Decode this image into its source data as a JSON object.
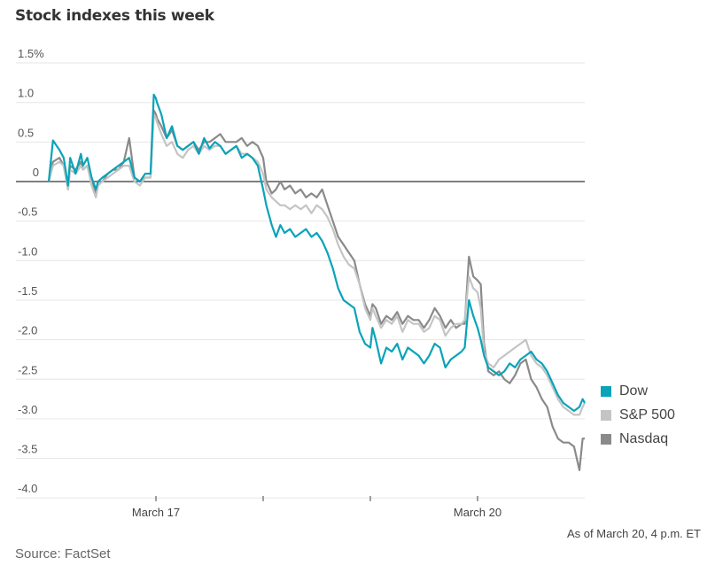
{
  "chart_data": {
    "type": "line",
    "title": "Stock indexes this week",
    "xlabel": "",
    "ylabel": "",
    "ylim": [
      -4.0,
      1.5
    ],
    "yticks": [
      1.5,
      1.0,
      0.5,
      0,
      -0.5,
      -1.0,
      -1.5,
      -2.0,
      -2.5,
      -3.0,
      -3.5,
      -4.0
    ],
    "ytick_labels": [
      "1.5%",
      "1.0",
      "0.5",
      "0",
      "-0.5",
      "-1.0",
      "-1.5",
      "-2.0",
      "-2.5",
      "-3.0",
      "-3.5",
      "-4.0"
    ],
    "xlim": [
      0,
      5
    ],
    "xticks": [
      1,
      2,
      3,
      4
    ],
    "xtick_labels": [
      "March 17",
      "",
      "",
      "March 20"
    ],
    "grid": true,
    "legend_position": "right",
    "annotation": "As of March 20, 4 p.m. ET",
    "source": "Source: FactSet",
    "series": [
      {
        "name": "Dow",
        "color": "#0aa3b9",
        "x": [
          0,
          0.04,
          0.1,
          0.14,
          0.18,
          0.2,
          0.25,
          0.3,
          0.32,
          0.36,
          0.4,
          0.44,
          0.46,
          0.5,
          0.55,
          0.6,
          0.65,
          0.7,
          0.75,
          0.8,
          0.85,
          0.9,
          0.95,
          0.98,
          1.0,
          1.01,
          1.05,
          1.1,
          1.15,
          1.2,
          1.25,
          1.3,
          1.35,
          1.4,
          1.45,
          1.5,
          1.55,
          1.6,
          1.65,
          1.7,
          1.75,
          1.8,
          1.85,
          1.9,
          1.95,
          2.0,
          2.03,
          2.08,
          2.12,
          2.16,
          2.2,
          2.25,
          2.3,
          2.35,
          2.4,
          2.45,
          2.5,
          2.55,
          2.6,
          2.65,
          2.7,
          2.75,
          2.8,
          2.85,
          2.9,
          2.95,
          3.0,
          3.02,
          3.05,
          3.1,
          3.15,
          3.2,
          3.25,
          3.3,
          3.35,
          3.4,
          3.45,
          3.5,
          3.55,
          3.6,
          3.65,
          3.7,
          3.75,
          3.8,
          3.85,
          3.88,
          3.92,
          3.96,
          4.0,
          4.03,
          4.06,
          4.1,
          4.15,
          4.2,
          4.25,
          4.3,
          4.35,
          4.4,
          4.45,
          4.5,
          4.55,
          4.6,
          4.65,
          4.7,
          4.75,
          4.8,
          4.85,
          4.9,
          4.95,
          4.98,
          5.0
        ],
        "values": [
          0,
          0.52,
          0.4,
          0.3,
          -0.05,
          0.3,
          0.1,
          0.35,
          0.2,
          0.3,
          0.05,
          -0.1,
          0.0,
          0.05,
          0.1,
          0.15,
          0.2,
          0.25,
          0.3,
          0.05,
          0.0,
          0.1,
          0.1,
          1.1,
          1.05,
          1.0,
          0.85,
          0.55,
          0.7,
          0.45,
          0.4,
          0.45,
          0.5,
          0.35,
          0.55,
          0.42,
          0.5,
          0.45,
          0.35,
          0.4,
          0.45,
          0.3,
          0.35,
          0.3,
          0.2,
          -0.1,
          -0.3,
          -0.55,
          -0.7,
          -0.55,
          -0.65,
          -0.6,
          -0.7,
          -0.65,
          -0.6,
          -0.7,
          -0.65,
          -0.75,
          -0.9,
          -1.1,
          -1.35,
          -1.5,
          -1.55,
          -1.6,
          -1.9,
          -2.05,
          -2.1,
          -1.85,
          -2.0,
          -2.3,
          -2.1,
          -2.15,
          -2.05,
          -2.25,
          -2.1,
          -2.15,
          -2.2,
          -2.3,
          -2.2,
          -2.05,
          -2.1,
          -2.35,
          -2.25,
          -2.2,
          -2.15,
          -2.1,
          -1.5,
          -1.7,
          -1.85,
          -2.0,
          -2.2,
          -2.35,
          -2.4,
          -2.45,
          -2.4,
          -2.3,
          -2.35,
          -2.25,
          -2.2,
          -2.15,
          -2.25,
          -2.3,
          -2.4,
          -2.55,
          -2.7,
          -2.8,
          -2.85,
          -2.9,
          -2.85,
          -2.75,
          -2.8
        ]
      },
      {
        "name": "S&P 500",
        "color": "#c4c4c4",
        "x": [
          0,
          0.04,
          0.1,
          0.14,
          0.18,
          0.2,
          0.25,
          0.3,
          0.32,
          0.36,
          0.4,
          0.44,
          0.46,
          0.5,
          0.55,
          0.6,
          0.65,
          0.7,
          0.75,
          0.8,
          0.85,
          0.9,
          0.95,
          0.98,
          1.0,
          1.01,
          1.05,
          1.1,
          1.15,
          1.2,
          1.25,
          1.3,
          1.35,
          1.4,
          1.45,
          1.5,
          1.55,
          1.6,
          1.65,
          1.7,
          1.75,
          1.8,
          1.85,
          1.9,
          1.95,
          2.0,
          2.03,
          2.08,
          2.12,
          2.16,
          2.2,
          2.25,
          2.3,
          2.35,
          2.4,
          2.45,
          2.5,
          2.55,
          2.6,
          2.65,
          2.7,
          2.75,
          2.8,
          2.85,
          2.9,
          2.95,
          3.0,
          3.02,
          3.05,
          3.1,
          3.15,
          3.2,
          3.25,
          3.3,
          3.35,
          3.4,
          3.45,
          3.5,
          3.55,
          3.6,
          3.65,
          3.7,
          3.75,
          3.8,
          3.85,
          3.88,
          3.92,
          3.96,
          4.0,
          4.03,
          4.06,
          4.1,
          4.15,
          4.2,
          4.25,
          4.3,
          4.35,
          4.4,
          4.45,
          4.5,
          4.55,
          4.6,
          4.65,
          4.7,
          4.75,
          4.8,
          4.85,
          4.9,
          4.95,
          4.98,
          5.0
        ],
        "values": [
          0,
          0.2,
          0.25,
          0.2,
          -0.1,
          0.15,
          0.1,
          0.2,
          0.15,
          0.2,
          -0.05,
          -0.2,
          -0.05,
          0.0,
          0.05,
          0.1,
          0.15,
          0.2,
          0.2,
          0.0,
          -0.05,
          0.05,
          0.05,
          0.85,
          0.8,
          0.75,
          0.6,
          0.45,
          0.5,
          0.35,
          0.3,
          0.4,
          0.45,
          0.35,
          0.45,
          0.4,
          0.45,
          0.45,
          0.35,
          0.4,
          0.45,
          0.35,
          0.35,
          0.3,
          0.25,
          0.1,
          -0.1,
          -0.2,
          -0.25,
          -0.3,
          -0.3,
          -0.35,
          -0.3,
          -0.35,
          -0.3,
          -0.4,
          -0.3,
          -0.35,
          -0.45,
          -0.6,
          -0.8,
          -0.95,
          -1.05,
          -1.1,
          -1.3,
          -1.6,
          -1.75,
          -1.6,
          -1.7,
          -1.85,
          -1.75,
          -1.8,
          -1.7,
          -1.9,
          -1.75,
          -1.8,
          -1.8,
          -1.9,
          -1.85,
          -1.7,
          -1.75,
          -1.95,
          -1.85,
          -1.8,
          -1.8,
          -1.75,
          -1.2,
          -1.35,
          -1.4,
          -1.6,
          -2.15,
          -2.3,
          -2.35,
          -2.25,
          -2.2,
          -2.15,
          -2.1,
          -2.05,
          -2.0,
          -2.2,
          -2.3,
          -2.35,
          -2.45,
          -2.6,
          -2.75,
          -2.85,
          -2.9,
          -2.95,
          -2.95,
          -2.85,
          -2.8
        ]
      },
      {
        "name": "Nasdaq",
        "color": "#8a8a8a",
        "x": [
          0,
          0.04,
          0.1,
          0.14,
          0.18,
          0.2,
          0.25,
          0.3,
          0.32,
          0.36,
          0.4,
          0.44,
          0.46,
          0.5,
          0.55,
          0.6,
          0.65,
          0.7,
          0.75,
          0.8,
          0.85,
          0.9,
          0.95,
          0.98,
          1.0,
          1.01,
          1.05,
          1.1,
          1.15,
          1.2,
          1.25,
          1.3,
          1.35,
          1.4,
          1.45,
          1.5,
          1.55,
          1.6,
          1.65,
          1.7,
          1.75,
          1.8,
          1.85,
          1.9,
          1.95,
          2.0,
          2.03,
          2.08,
          2.12,
          2.16,
          2.2,
          2.25,
          2.3,
          2.35,
          2.4,
          2.45,
          2.5,
          2.55,
          2.6,
          2.65,
          2.7,
          2.75,
          2.8,
          2.85,
          2.9,
          2.95,
          3.0,
          3.02,
          3.05,
          3.1,
          3.15,
          3.2,
          3.25,
          3.3,
          3.35,
          3.4,
          3.45,
          3.5,
          3.55,
          3.6,
          3.65,
          3.7,
          3.75,
          3.8,
          3.85,
          3.88,
          3.92,
          3.96,
          4.0,
          4.03,
          4.06,
          4.1,
          4.15,
          4.2,
          4.25,
          4.3,
          4.35,
          4.4,
          4.45,
          4.5,
          4.55,
          4.6,
          4.65,
          4.7,
          4.75,
          4.8,
          4.85,
          4.9,
          4.95,
          4.98,
          5.0
        ],
        "values": [
          0,
          0.25,
          0.3,
          0.2,
          -0.1,
          0.2,
          0.15,
          0.25,
          0.15,
          0.2,
          0.0,
          -0.15,
          0.0,
          0.0,
          0.1,
          0.15,
          0.15,
          0.25,
          0.55,
          0.05,
          0.0,
          0.05,
          0.05,
          0.9,
          0.85,
          0.8,
          0.7,
          0.55,
          0.65,
          0.45,
          0.4,
          0.45,
          0.5,
          0.4,
          0.5,
          0.5,
          0.55,
          0.6,
          0.5,
          0.5,
          0.5,
          0.55,
          0.45,
          0.5,
          0.45,
          0.3,
          0.0,
          -0.15,
          -0.1,
          0.0,
          -0.1,
          -0.05,
          -0.15,
          -0.1,
          -0.2,
          -0.15,
          -0.2,
          -0.1,
          -0.3,
          -0.5,
          -0.7,
          -0.8,
          -0.9,
          -1.0,
          -1.3,
          -1.55,
          -1.7,
          -1.55,
          -1.6,
          -1.8,
          -1.7,
          -1.75,
          -1.65,
          -1.8,
          -1.7,
          -1.75,
          -1.75,
          -1.85,
          -1.75,
          -1.6,
          -1.7,
          -1.85,
          -1.75,
          -1.85,
          -1.8,
          -1.8,
          -0.95,
          -1.2,
          -1.25,
          -1.3,
          -2.05,
          -2.4,
          -2.45,
          -2.4,
          -2.5,
          -2.55,
          -2.45,
          -2.3,
          -2.25,
          -2.5,
          -2.6,
          -2.75,
          -2.85,
          -3.1,
          -3.25,
          -3.3,
          -3.3,
          -3.35,
          -3.65,
          -3.25,
          -3.25
        ]
      }
    ]
  }
}
